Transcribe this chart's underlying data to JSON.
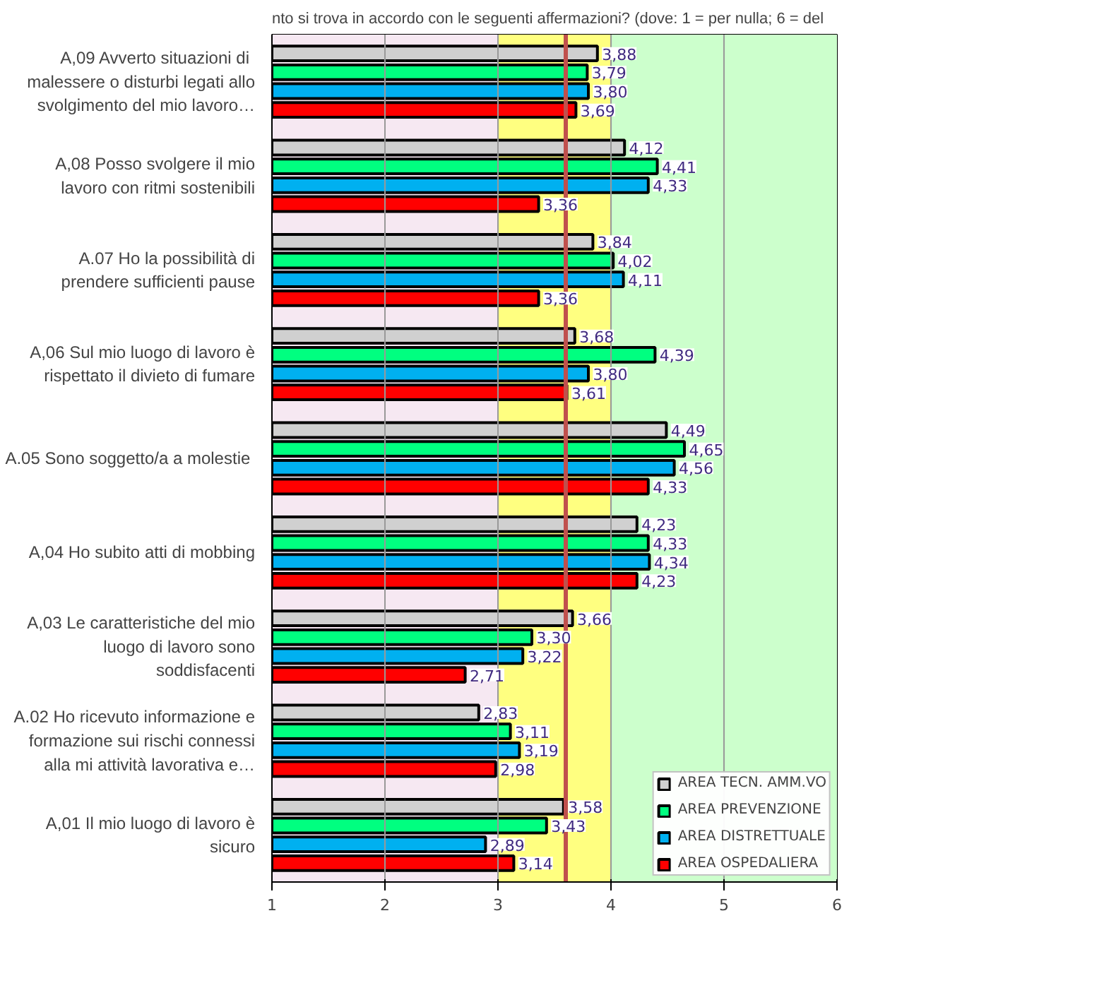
{
  "chart_data": {
    "type": "bar",
    "orientation": "horizontal",
    "title": "nto si trova in accordo con le seguenti affermazioni? (dove: 1 = per nulla; 6 = del",
    "categories": [
      "A,09 Avverto situazioni  di malessere o disturbi legati allo svolgimento del mio lavoro…",
      "A,08 Posso svolgere il mio lavoro con ritmi sostenibili",
      "A.07 Ho la possibilità di prendere sufficienti pause",
      "A,06 Sul mio luogo di lavoro è rispettato il divieto di fumare",
      "A.05 Sono soggetto/a  a molestie",
      "A,04 Ho subito atti di mobbing",
      "A,03 Le caratteristiche del mio luogo di lavoro sono soddisfacenti",
      "A.02 Ho ricevuto informazione e formazione sui rischi connessi alla mi attività lavorativa e…",
      "A,01 Il mio luogo di lavoro è sicuro"
    ],
    "series": [
      {
        "name": "AREA TECN. AMM.VO",
        "color": "#d0d0d0",
        "values": [
          3.88,
          4.12,
          3.84,
          3.68,
          4.49,
          4.23,
          3.66,
          2.83,
          3.58
        ],
        "value_labels": [
          "3,88",
          "4,12",
          "3,84",
          "3,68",
          "4,49",
          "4,23",
          "3,66",
          "2,83",
          "3,58"
        ]
      },
      {
        "name": "AREA PREVENZIONE",
        "color": "#00ff80",
        "values": [
          3.79,
          4.41,
          4.02,
          4.39,
          4.65,
          4.33,
          3.3,
          3.11,
          3.43
        ],
        "value_labels": [
          "3,79",
          "4,41",
          "4,02",
          "4,39",
          "4,65",
          "4,33",
          "3,30",
          "3,11",
          "3,43"
        ]
      },
      {
        "name": "AREA DISTRETTUALE",
        "color": "#00b0f0",
        "values": [
          3.8,
          4.33,
          4.11,
          3.8,
          4.56,
          4.34,
          3.22,
          3.19,
          2.89
        ],
        "value_labels": [
          "3,80",
          "4,33",
          "4,11",
          "3,80",
          "4,56",
          "4,34",
          "3,22",
          "3,19",
          "2,89"
        ]
      },
      {
        "name": "AREA OSPEDALIERA",
        "color": "#ff0000",
        "values": [
          3.69,
          3.36,
          3.36,
          3.61,
          4.33,
          4.23,
          2.71,
          2.98,
          3.14
        ],
        "value_labels": [
          "3,69",
          "3,36",
          "3,36",
          "3,61",
          "4,33",
          "4,23",
          "2,71",
          "2,98",
          "3,14"
        ]
      }
    ],
    "xlim": [
      1,
      6
    ],
    "xticks": [
      1,
      2,
      3,
      4,
      5,
      6
    ],
    "grid": "x",
    "legend": "bottom right",
    "bands": [
      {
        "axis": "x",
        "from": 1,
        "to": 3,
        "color": "#f6e8f2"
      },
      {
        "axis": "x",
        "from": 3,
        "to": 4,
        "color": "#ffff80"
      },
      {
        "axis": "x",
        "from": 4,
        "to": 6,
        "color": "#ccffcc"
      }
    ],
    "ref_lines": [
      {
        "axis": "x",
        "value": 3.6,
        "color": "#c0504d"
      }
    ]
  }
}
